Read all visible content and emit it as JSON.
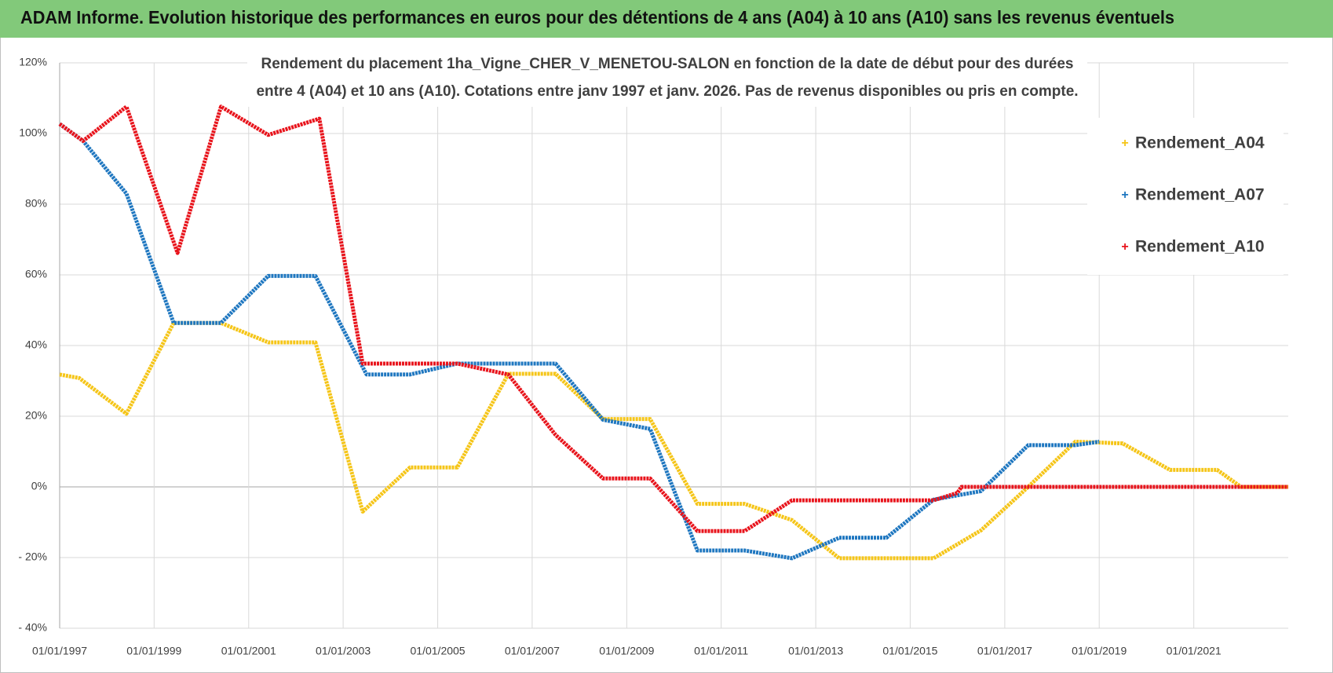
{
  "chart_data": {
    "type": "line",
    "title": "ADAM Informe. Evolution historique des performances en euros pour des détentions de 4 ans (A04) à 10 ans (A10) sans les revenus éventuels",
    "subtitle": [
      "Rendement du placement 1ha_Vigne_CHER_V_MENETOU-SALON en fonction de la date de début pour des durées",
      "entre 4 (A04) et 10 ans (A10).  Cotations entre janv 1997 et janv. 2026. Pas de revenus disponibles ou pris en compte."
    ],
    "xlim": [
      "01/01/1997",
      "01/01/2023"
    ],
    "xticks": [
      "01/01/1997",
      "01/01/1999",
      "01/01/2001",
      "01/01/2003",
      "01/01/2005",
      "01/01/2007",
      "01/01/2009",
      "01/01/2011",
      "01/01/2013",
      "01/01/2015",
      "01/01/2017",
      "01/01/2019",
      "01/01/2021"
    ],
    "ylim": [
      -40,
      120
    ],
    "yticks": [
      {
        "value": -40,
        "label": "- 40%"
      },
      {
        "value": -20,
        "label": "- 20%"
      },
      {
        "value": 0,
        "label": "0%"
      },
      {
        "value": 20,
        "label": "20%"
      },
      {
        "value": 40,
        "label": "40%"
      },
      {
        "value": 60,
        "label": "60%"
      },
      {
        "value": 80,
        "label": "80%"
      },
      {
        "value": 100,
        "label": "100%"
      },
      {
        "value": 120,
        "label": "120%"
      }
    ],
    "grid": true,
    "legend": "right",
    "series": [
      {
        "name": "Rendement_A04",
        "color": "#f5c518",
        "x": [
          "01/01/1997",
          "01/06/1997",
          "01/06/1998",
          "01/06/1999",
          "01/06/2000",
          "01/06/2001",
          "01/06/2002",
          "01/06/2003",
          "01/06/2004",
          "01/06/2005",
          "01/07/2006",
          "01/07/2007",
          "01/07/2008",
          "01/07/2009",
          "01/07/2010",
          "01/07/2011",
          "01/07/2012",
          "01/07/2013",
          "01/07/2015",
          "01/07/2016",
          "01/07/2017",
          "01/07/2018",
          "01/07/2019",
          "01/07/2020",
          "01/07/2021",
          "01/01/2022",
          "01/01/2023"
        ],
        "values": [
          31.8,
          30.8,
          20.7,
          46.4,
          46.4,
          40.9,
          40.9,
          -7,
          5.5,
          5.5,
          32,
          32,
          19.2,
          19.2,
          -4.8,
          -4.8,
          -9.4,
          -20.2,
          -20.2,
          -12.3,
          0,
          12.8,
          12.3,
          4.8,
          4.8,
          0,
          0
        ]
      },
      {
        "name": "Rendement_A07",
        "color": "#1f77c0",
        "x": [
          "01/01/1997",
          "01/07/1997",
          "01/06/1998",
          "01/06/1999",
          "01/06/2000",
          "01/06/2001",
          "01/06/2002",
          "01/07/2003",
          "01/06/2004",
          "01/06/2005",
          "01/07/2007",
          "01/07/2008",
          "01/07/2009",
          "01/07/2010",
          "01/07/2011",
          "01/07/2012",
          "01/07/2013",
          "01/07/2014",
          "01/07/2015",
          "01/07/2016",
          "01/07/2017",
          "01/07/2018",
          "01/01/2019"
        ],
        "values": [
          102.7,
          97.9,
          83,
          46.4,
          46.4,
          59.7,
          59.7,
          31.8,
          31.8,
          34.9,
          34.9,
          19,
          16.4,
          -18,
          -18,
          -20.2,
          -14.4,
          -14.4,
          -3.6,
          -1.2,
          11.8,
          11.8,
          12.8
        ]
      },
      {
        "name": "Rendement_A10",
        "color": "#e8141c",
        "x": [
          "01/01/1997",
          "01/07/1997",
          "01/06/1998",
          "01/07/1999",
          "01/06/2000",
          "01/06/2001",
          "01/07/2002",
          "01/06/2003",
          "01/06/2005",
          "01/07/2006",
          "01/07/2007",
          "01/07/2008",
          "01/07/2009",
          "01/07/2010",
          "01/07/2011",
          "01/07/2012",
          "01/07/2015",
          "01/01/2016",
          "01/02/2016",
          "01/01/2023"
        ],
        "values": [
          102.7,
          97.9,
          107.6,
          66.2,
          107.6,
          99.6,
          104.2,
          34.9,
          34.9,
          31.8,
          14.7,
          2.4,
          2.4,
          -12.5,
          -12.5,
          -3.8,
          -3.8,
          -1.7,
          0,
          0
        ]
      }
    ]
  }
}
